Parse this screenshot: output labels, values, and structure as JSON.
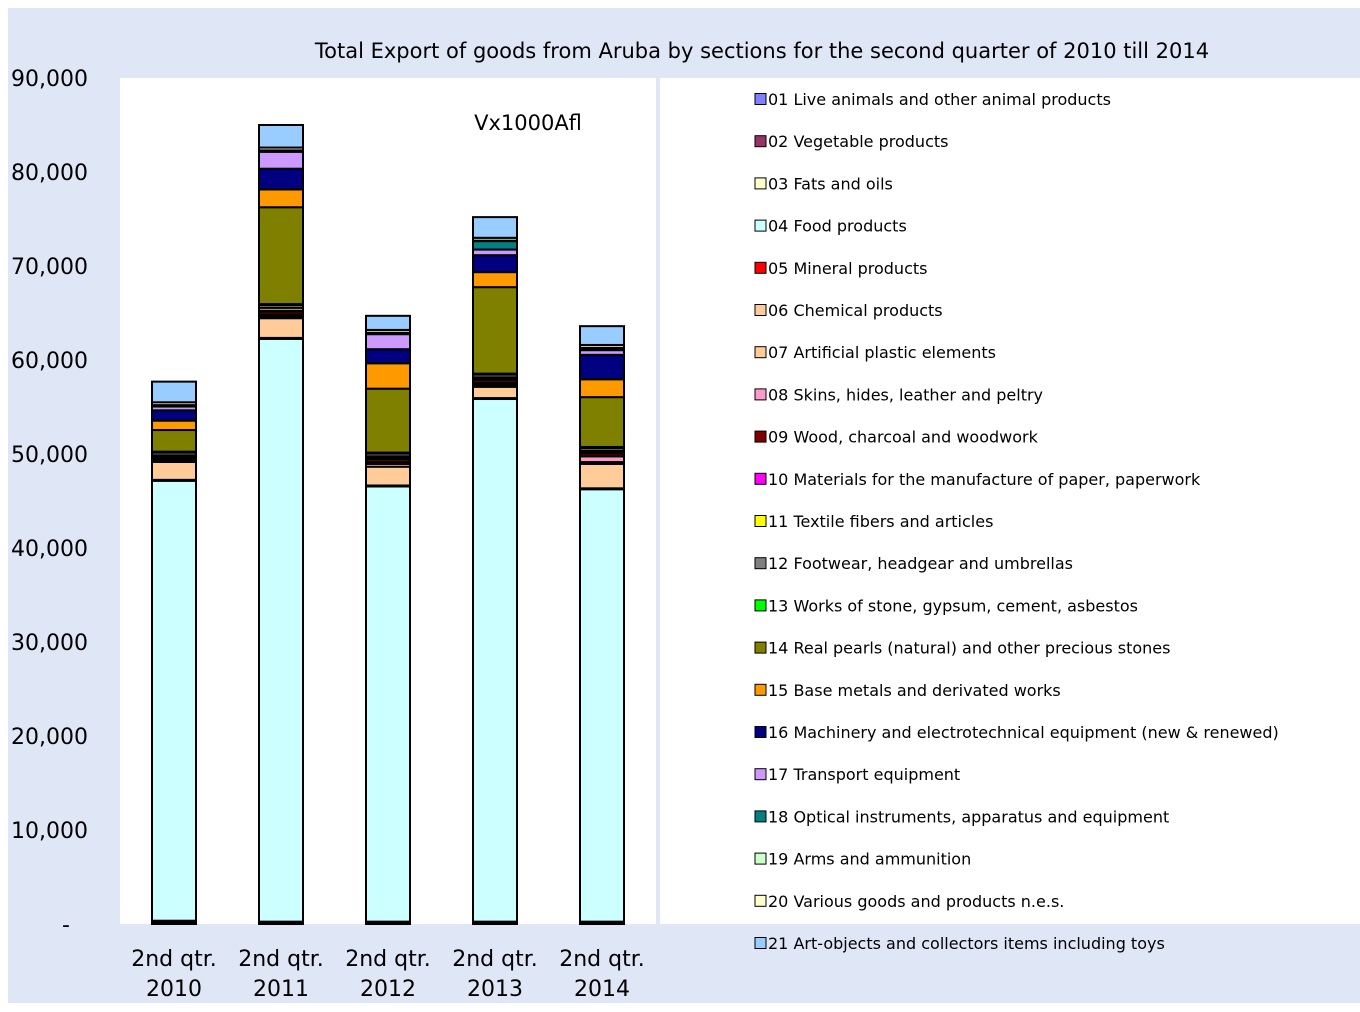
{
  "chart_data": {
    "type": "bar",
    "stacked": true,
    "title": "Total Export of goods from Aruba by sections for the second quarter of 2010 till 2014",
    "unit_label": "Vx1000Afl",
    "categories": [
      [
        "2nd qtr.",
        "2010"
      ],
      [
        "2nd qtr.",
        "2011"
      ],
      [
        "2nd qtr.",
        "2012"
      ],
      [
        "2nd qtr.",
        "2013"
      ],
      [
        "2nd qtr.",
        "2014"
      ]
    ],
    "ylim": [
      0,
      90000
    ],
    "yticks": [
      0,
      10000,
      20000,
      30000,
      40000,
      50000,
      60000,
      70000,
      80000,
      90000
    ],
    "ytick_labels": [
      "-",
      "10,000",
      "20,000",
      "30,000",
      "40,000",
      "50,000",
      "60,000",
      "70,000",
      "80,000",
      "90,000"
    ],
    "legend_position": "right",
    "series": [
      {
        "name": "01 Live animals and other animal products",
        "color": "#8080ff",
        "values": [
          100,
          100,
          100,
          100,
          100
        ]
      },
      {
        "name": "02 Vegetable products",
        "color": "#993366",
        "values": [
          200,
          100,
          100,
          100,
          100
        ]
      },
      {
        "name": "03 Fats and oils",
        "color": "#ffffcc",
        "values": [
          50,
          50,
          50,
          50,
          50
        ]
      },
      {
        "name": "04 Food products",
        "color": "#ccffff",
        "values": [
          46800,
          62000,
          46300,
          55600,
          46000
        ]
      },
      {
        "name": "05 Mineral products",
        "color": "#ff0000",
        "values": [
          100,
          100,
          100,
          100,
          100
        ]
      },
      {
        "name": "06 Chemical products",
        "color": "#ffcc99",
        "values": [
          1900,
          2100,
          2000,
          1200,
          2600
        ]
      },
      {
        "name": "07 Artificial plastic elements",
        "color": "#ffcc99",
        "values": [
          200,
          200,
          300,
          200,
          200
        ]
      },
      {
        "name": "08 Skins, hides, leather and peltry",
        "color": "#ff99cc",
        "values": [
          100,
          200,
          200,
          200,
          600
        ]
      },
      {
        "name": "09 Wood, charcoal and woodwork",
        "color": "#800000",
        "values": [
          100,
          300,
          300,
          300,
          300
        ]
      },
      {
        "name": "10 Materials for the manufacture of paper, paperwork",
        "color": "#ff00ff",
        "values": [
          100,
          100,
          100,
          100,
          100
        ]
      },
      {
        "name": "11 Textile fibers and articles",
        "color": "#ffff00",
        "values": [
          200,
          300,
          200,
          200,
          200
        ]
      },
      {
        "name": "12 Footwear, headgear and umbrellas",
        "color": "#808080",
        "values": [
          300,
          300,
          300,
          300,
          300
        ]
      },
      {
        "name": "13 Works of stone, gypsum, cement, asbestos",
        "color": "#00ff00",
        "values": [
          100,
          100,
          100,
          100,
          100
        ]
      },
      {
        "name": "14 Real pearls (natural) and other precious stones",
        "color": "#808000",
        "values": [
          2300,
          10300,
          6800,
          9200,
          5300
        ]
      },
      {
        "name": "15 Base metals and derivated works",
        "color": "#ff9900",
        "values": [
          1000,
          1900,
          2700,
          1600,
          1900
        ]
      },
      {
        "name": "16 Machinery and electrotechnical equipment (new & renewed)",
        "color": "#000080",
        "values": [
          1100,
          2200,
          1500,
          1800,
          2600
        ]
      },
      {
        "name": "17 Transport equipment",
        "color": "#cc99ff",
        "values": [
          400,
          1800,
          1600,
          600,
          500
        ]
      },
      {
        "name": "18 Optical instruments, apparatus and equipment",
        "color": "#008080",
        "values": [
          100,
          100,
          100,
          900,
          200
        ]
      },
      {
        "name": "19 Arms and ammunition",
        "color": "#ccffcc",
        "values": [
          50,
          50,
          50,
          50,
          50
        ]
      },
      {
        "name": "20 Various goods and products n.e.s.",
        "color": "#ffffcc",
        "values": [
          300,
          300,
          300,
          300,
          300
        ]
      },
      {
        "name": "21 Art-objects and collectors items including toys",
        "color": "#99ccff",
        "values": [
          2200,
          2400,
          1500,
          2200,
          2000
        ]
      }
    ]
  }
}
